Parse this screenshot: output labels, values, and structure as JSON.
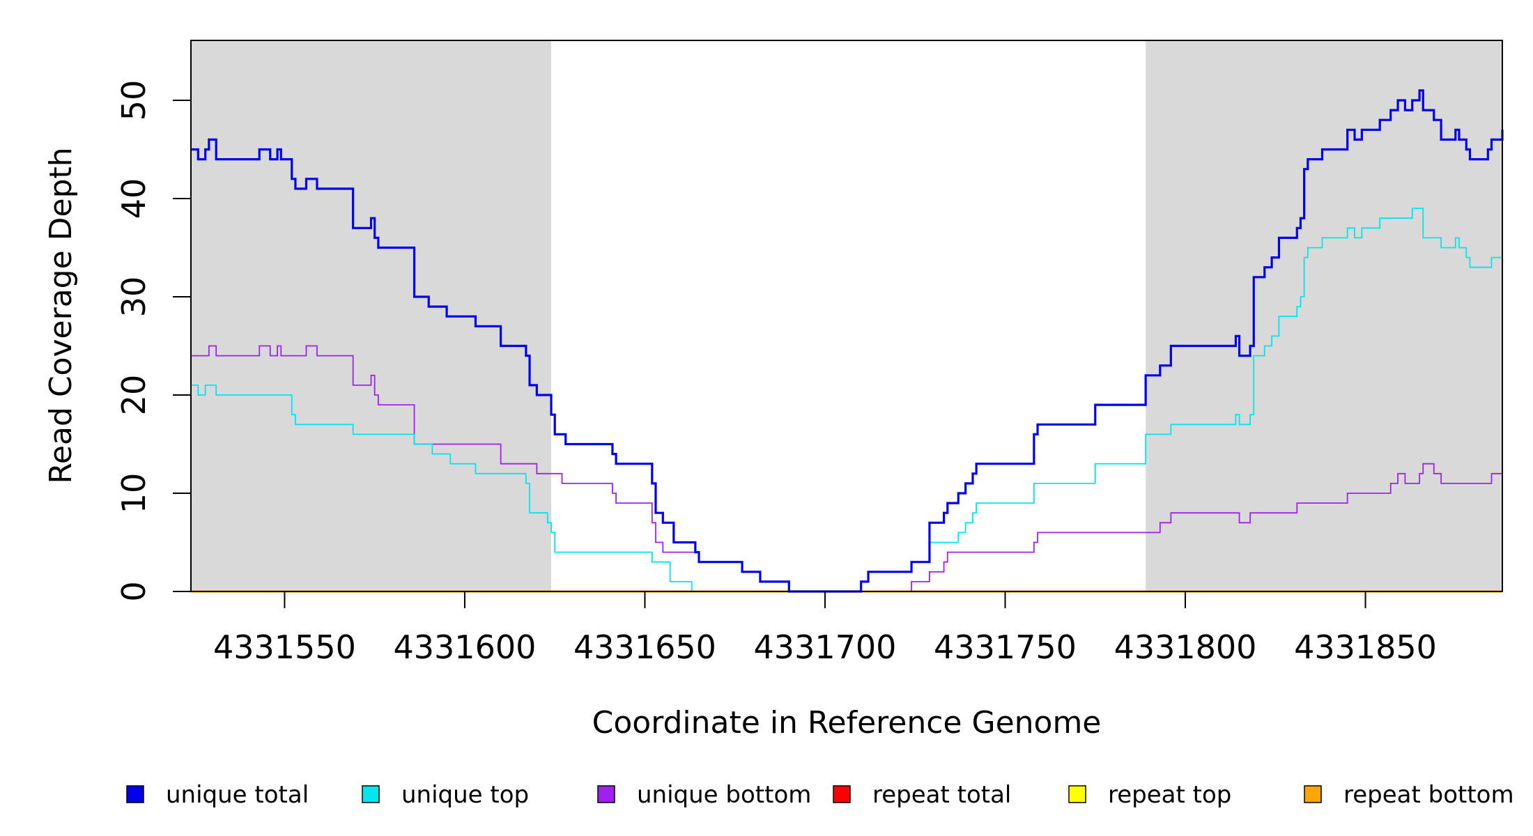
{
  "chart_data": {
    "type": "line",
    "step": true,
    "xlabel": "Coordinate in Reference Genome",
    "ylabel": "Read Coverage Depth",
    "xlim": [
      4331524,
      4331888
    ],
    "ylim": [
      0,
      56
    ],
    "x_ticks": [
      4331550,
      4331600,
      4331650,
      4331700,
      4331750,
      4331800,
      4331850
    ],
    "x_tick_labels": [
      "4331550",
      "4331600",
      "4331650",
      "4331700",
      "4331750",
      "4331800",
      "4331850"
    ],
    "y_ticks": [
      0,
      10,
      20,
      30,
      40,
      50
    ],
    "y_tick_labels": [
      "0",
      "10",
      "20",
      "30",
      "40",
      "50"
    ],
    "shaded_regions": [
      [
        4331524,
        4331624
      ],
      [
        4331789,
        4331888
      ]
    ],
    "shade_color": "#d9d9d9",
    "legend_position": "bottom",
    "series": [
      {
        "name": "unique total",
        "color": "#0000ee",
        "width": "bold",
        "points": [
          [
            4331524,
            45
          ],
          [
            4331526,
            44
          ],
          [
            4331528,
            45
          ],
          [
            4331529,
            46
          ],
          [
            4331531,
            44
          ],
          [
            4331543,
            45
          ],
          [
            4331546,
            44
          ],
          [
            4331548,
            45
          ],
          [
            4331549,
            44
          ],
          [
            4331552,
            42
          ],
          [
            4331553,
            41
          ],
          [
            4331556,
            42
          ],
          [
            4331559,
            41
          ],
          [
            4331569,
            37
          ],
          [
            4331574,
            38
          ],
          [
            4331575,
            36
          ],
          [
            4331576,
            35
          ],
          [
            4331586,
            30
          ],
          [
            4331590,
            29
          ],
          [
            4331595,
            28
          ],
          [
            4331603,
            27
          ],
          [
            4331610,
            25
          ],
          [
            4331617,
            24
          ],
          [
            4331618,
            21
          ],
          [
            4331620,
            20
          ],
          [
            4331624,
            18
          ],
          [
            4331625,
            16
          ],
          [
            4331628,
            15
          ],
          [
            4331641,
            14
          ],
          [
            4331642,
            13
          ],
          [
            4331652,
            11
          ],
          [
            4331653,
            8
          ],
          [
            4331655,
            7
          ],
          [
            4331658,
            5
          ],
          [
            4331664,
            4
          ],
          [
            4331665,
            3
          ],
          [
            4331677,
            2
          ],
          [
            4331682,
            1
          ],
          [
            4331690,
            0
          ],
          [
            4331710,
            1
          ],
          [
            4331712,
            2
          ],
          [
            4331724,
            3
          ],
          [
            4331729,
            7
          ],
          [
            4331733,
            8
          ],
          [
            4331734,
            9
          ],
          [
            4331737,
            10
          ],
          [
            4331739,
            11
          ],
          [
            4331741,
            12
          ],
          [
            4331742,
            13
          ],
          [
            4331758,
            16
          ],
          [
            4331759,
            17
          ],
          [
            4331775,
            19
          ],
          [
            4331789,
            22
          ],
          [
            4331793,
            23
          ],
          [
            4331796,
            25
          ],
          [
            4331814,
            26
          ],
          [
            4331815,
            24
          ],
          [
            4331818,
            25
          ],
          [
            4331819,
            32
          ],
          [
            4331822,
            33
          ],
          [
            4331824,
            34
          ],
          [
            4331826,
            36
          ],
          [
            4331831,
            37
          ],
          [
            4331832,
            38
          ],
          [
            4331833,
            43
          ],
          [
            4331834,
            44
          ],
          [
            4331838,
            45
          ],
          [
            4331845,
            47
          ],
          [
            4331847,
            46
          ],
          [
            4331849,
            47
          ],
          [
            4331854,
            48
          ],
          [
            4331857,
            49
          ],
          [
            4331859,
            50
          ],
          [
            4331861,
            49
          ],
          [
            4331863,
            50
          ],
          [
            4331865,
            51
          ],
          [
            4331866,
            49
          ],
          [
            4331869,
            48
          ],
          [
            4331871,
            46
          ],
          [
            4331875,
            47
          ],
          [
            4331876,
            46
          ],
          [
            4331878,
            45
          ],
          [
            4331879,
            44
          ],
          [
            4331884,
            45
          ],
          [
            4331885,
            46
          ],
          [
            4331888,
            47
          ]
        ]
      },
      {
        "name": "unique top",
        "color": "#00e5ee",
        "width": "thin",
        "points": [
          [
            4331524,
            21
          ],
          [
            4331526,
            20
          ],
          [
            4331528,
            21
          ],
          [
            4331531,
            20
          ],
          [
            4331552,
            18
          ],
          [
            4331553,
            17
          ],
          [
            4331569,
            16
          ],
          [
            4331586,
            15
          ],
          [
            4331591,
            14
          ],
          [
            4331596,
            13
          ],
          [
            4331603,
            12
          ],
          [
            4331617,
            11
          ],
          [
            4331618,
            8
          ],
          [
            4331623,
            7
          ],
          [
            4331624,
            6
          ],
          [
            4331625,
            4
          ],
          [
            4331652,
            3
          ],
          [
            4331657,
            1
          ],
          [
            4331663,
            0
          ],
          [
            4331710,
            1
          ],
          [
            4331712,
            2
          ],
          [
            4331724,
            3
          ],
          [
            4331729,
            5
          ],
          [
            4331737,
            6
          ],
          [
            4331739,
            7
          ],
          [
            4331741,
            8
          ],
          [
            4331742,
            9
          ],
          [
            4331758,
            11
          ],
          [
            4331775,
            13
          ],
          [
            4331789,
            16
          ],
          [
            4331796,
            17
          ],
          [
            4331814,
            18
          ],
          [
            4331815,
            17
          ],
          [
            4331818,
            18
          ],
          [
            4331819,
            24
          ],
          [
            4331822,
            25
          ],
          [
            4331824,
            26
          ],
          [
            4331826,
            28
          ],
          [
            4331831,
            29
          ],
          [
            4331832,
            30
          ],
          [
            4331833,
            34
          ],
          [
            4331834,
            35
          ],
          [
            4331838,
            36
          ],
          [
            4331845,
            37
          ],
          [
            4331847,
            36
          ],
          [
            4331849,
            37
          ],
          [
            4331854,
            38
          ],
          [
            4331863,
            39
          ],
          [
            4331866,
            36
          ],
          [
            4331871,
            35
          ],
          [
            4331875,
            36
          ],
          [
            4331876,
            35
          ],
          [
            4331878,
            34
          ],
          [
            4331879,
            33
          ],
          [
            4331885,
            34
          ],
          [
            4331888,
            35
          ]
        ]
      },
      {
        "name": "unique bottom",
        "color": "#a020f0",
        "width": "thin",
        "points": [
          [
            4331524,
            24
          ],
          [
            4331529,
            25
          ],
          [
            4331531,
            24
          ],
          [
            4331543,
            25
          ],
          [
            4331546,
            24
          ],
          [
            4331548,
            25
          ],
          [
            4331549,
            24
          ],
          [
            4331556,
            25
          ],
          [
            4331559,
            24
          ],
          [
            4331569,
            21
          ],
          [
            4331574,
            22
          ],
          [
            4331575,
            20
          ],
          [
            4331576,
            19
          ],
          [
            4331586,
            15
          ],
          [
            4331610,
            13
          ],
          [
            4331620,
            12
          ],
          [
            4331627,
            11
          ],
          [
            4331641,
            10
          ],
          [
            4331642,
            9
          ],
          [
            4331652,
            7
          ],
          [
            4331653,
            5
          ],
          [
            4331655,
            4
          ],
          [
            4331665,
            3
          ],
          [
            4331677,
            2
          ],
          [
            4331682,
            1
          ],
          [
            4331690,
            0
          ],
          [
            4331724,
            1
          ],
          [
            4331729,
            2
          ],
          [
            4331733,
            3
          ],
          [
            4331734,
            4
          ],
          [
            4331758,
            5
          ],
          [
            4331759,
            6
          ],
          [
            4331789,
            6
          ],
          [
            4331793,
            7
          ],
          [
            4331796,
            8
          ],
          [
            4331815,
            7
          ],
          [
            4331818,
            8
          ],
          [
            4331831,
            9
          ],
          [
            4331845,
            10
          ],
          [
            4331857,
            11
          ],
          [
            4331859,
            12
          ],
          [
            4331861,
            11
          ],
          [
            4331865,
            12
          ],
          [
            4331866,
            13
          ],
          [
            4331869,
            12
          ],
          [
            4331871,
            11
          ],
          [
            4331885,
            12
          ],
          [
            4331888,
            12
          ]
        ]
      },
      {
        "name": "repeat total",
        "color": "#ff0000",
        "width": "thin",
        "points": [
          [
            4331524,
            0
          ],
          [
            4331888,
            0
          ]
        ]
      },
      {
        "name": "repeat top",
        "color": "#ffff00",
        "width": "thin",
        "points": [
          [
            4331524,
            0
          ],
          [
            4331888,
            0
          ]
        ]
      },
      {
        "name": "repeat bottom",
        "color": "#ffa500",
        "width": "medium",
        "points": [
          [
            4331524,
            0
          ],
          [
            4331888,
            0
          ]
        ]
      }
    ]
  }
}
